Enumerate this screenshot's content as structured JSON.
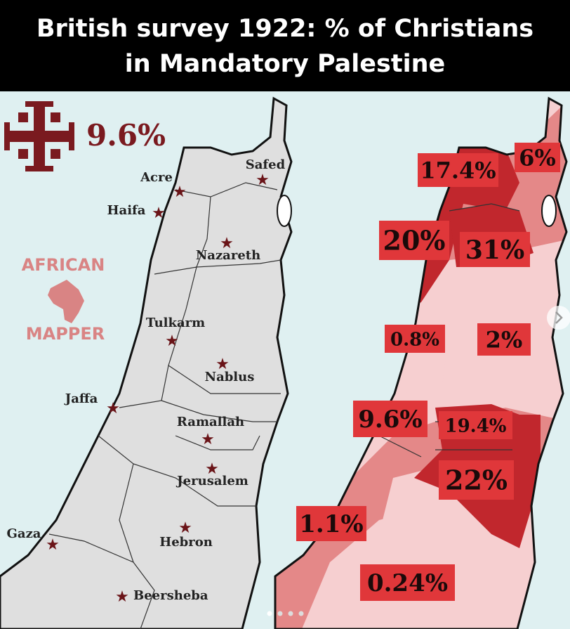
{
  "header": {
    "title_lines": [
      "British survey 1922: % of Christians",
      "in Mandatory Palestine"
    ]
  },
  "overall": {
    "value": "9.6%"
  },
  "logo": {
    "top": "AFRICAN",
    "bottom": "MAPPER"
  },
  "cities": [
    "Safed",
    "Acre",
    "Haifa",
    "Nazareth",
    "Tulkarm",
    "Nablus",
    "Jaffa",
    "Ramallah",
    "Jerusalem",
    "Gaza",
    "Hebron",
    "Beersheba"
  ],
  "districts": [
    "17.4%",
    "6%",
    "20%",
    "31%",
    "0.8%",
    "2%",
    "9.6%",
    "19.4%",
    "22%",
    "1.1%",
    "0.24%"
  ]
}
